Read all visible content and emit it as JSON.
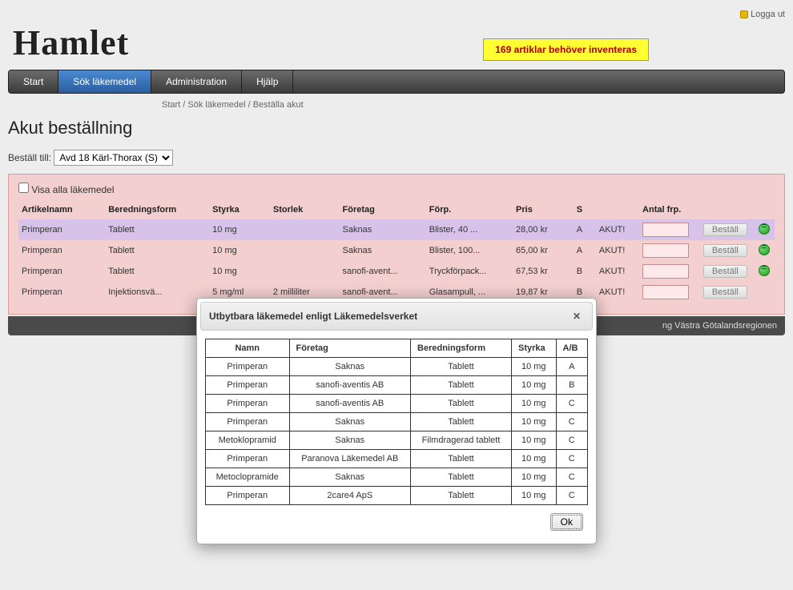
{
  "logout_label": "Logga ut",
  "logo_text": "Hamlet",
  "alert_text": "169 artiklar behöver inventeras",
  "nav": {
    "start": "Start",
    "sok": "Sök läkemedel",
    "admin": "Administration",
    "help": "Hjälp"
  },
  "breadcrumb": "Start / Sök läkemedel / Beställa akut",
  "page_title": "Akut beställning",
  "order_to_label": "Beställ till:",
  "order_to_value": "Avd 18 Kärl-Thorax (S)",
  "show_all_label": "Visa alla läkemedel",
  "columns": {
    "name": "Artikelnamn",
    "form": "Beredningsform",
    "strength": "Styrka",
    "size": "Storlek",
    "company": "Företag",
    "package": "Förp.",
    "price": "Pris",
    "s": "S",
    "status": "",
    "qty": "Antal frp.",
    "order": "",
    "sub": ""
  },
  "order_button_label": "Beställ",
  "rows": [
    {
      "name": "Primperan",
      "form": "Tablett",
      "strength": "10 mg",
      "size": "",
      "company": "Saknas",
      "package": "Blister, 40 ...",
      "price": "28,00 kr",
      "s": "A",
      "status": "AKUT!",
      "green": true,
      "selected": true
    },
    {
      "name": "Primperan",
      "form": "Tablett",
      "strength": "10 mg",
      "size": "",
      "company": "Saknas",
      "package": "Blister, 100...",
      "price": "65,00 kr",
      "s": "A",
      "status": "AKUT!",
      "green": true,
      "selected": false
    },
    {
      "name": "Primperan",
      "form": "Tablett",
      "strength": "10 mg",
      "size": "",
      "company": "sanofi-avent...",
      "package": "Tryckförpack...",
      "price": "67,53 kr",
      "s": "B",
      "status": "AKUT!",
      "green": true,
      "selected": false
    },
    {
      "name": "Primperan",
      "form": "Injektionsvä...",
      "strength": "5 mg/ml",
      "size": "2 milliliter",
      "company": "sanofi-avent...",
      "package": "Glasampull, ...",
      "price": "19,87 kr",
      "s": "B",
      "status": "AKUT!",
      "green": false,
      "selected": false
    }
  ],
  "footer_text": "ng Västra Götalandsregionen",
  "dialog": {
    "title": "Utbytbara läkemedel enligt Läkemedelsverket",
    "columns": {
      "name": "Namn",
      "company": "Företag",
      "form": "Beredningsform",
      "strength": "Styrka",
      "ab": "A/B"
    },
    "rows": [
      {
        "name": "Primperan",
        "company": "Saknas",
        "form": "Tablett",
        "strength": "10 mg",
        "ab": "A"
      },
      {
        "name": "Primperan",
        "company": "sanofi-aventis AB",
        "form": "Tablett",
        "strength": "10 mg",
        "ab": "B"
      },
      {
        "name": "Primperan",
        "company": "sanofi-aventis AB",
        "form": "Tablett",
        "strength": "10 mg",
        "ab": "C"
      },
      {
        "name": "Primperan",
        "company": "Saknas",
        "form": "Tablett",
        "strength": "10 mg",
        "ab": "C"
      },
      {
        "name": "Metoklopramid",
        "company": "Saknas",
        "form": "Filmdragerad tablett",
        "strength": "10 mg",
        "ab": "C"
      },
      {
        "name": "Primperan",
        "company": "Paranova Läkemedel AB",
        "form": "Tablett",
        "strength": "10 mg",
        "ab": "C"
      },
      {
        "name": "Metoclopramide",
        "company": "Saknas",
        "form": "Tablett",
        "strength": "10 mg",
        "ab": "C"
      },
      {
        "name": "Primperan",
        "company": "2care4 ApS",
        "form": "Tablett",
        "strength": "10 mg",
        "ab": "C"
      }
    ],
    "ok_label": "Ok"
  }
}
